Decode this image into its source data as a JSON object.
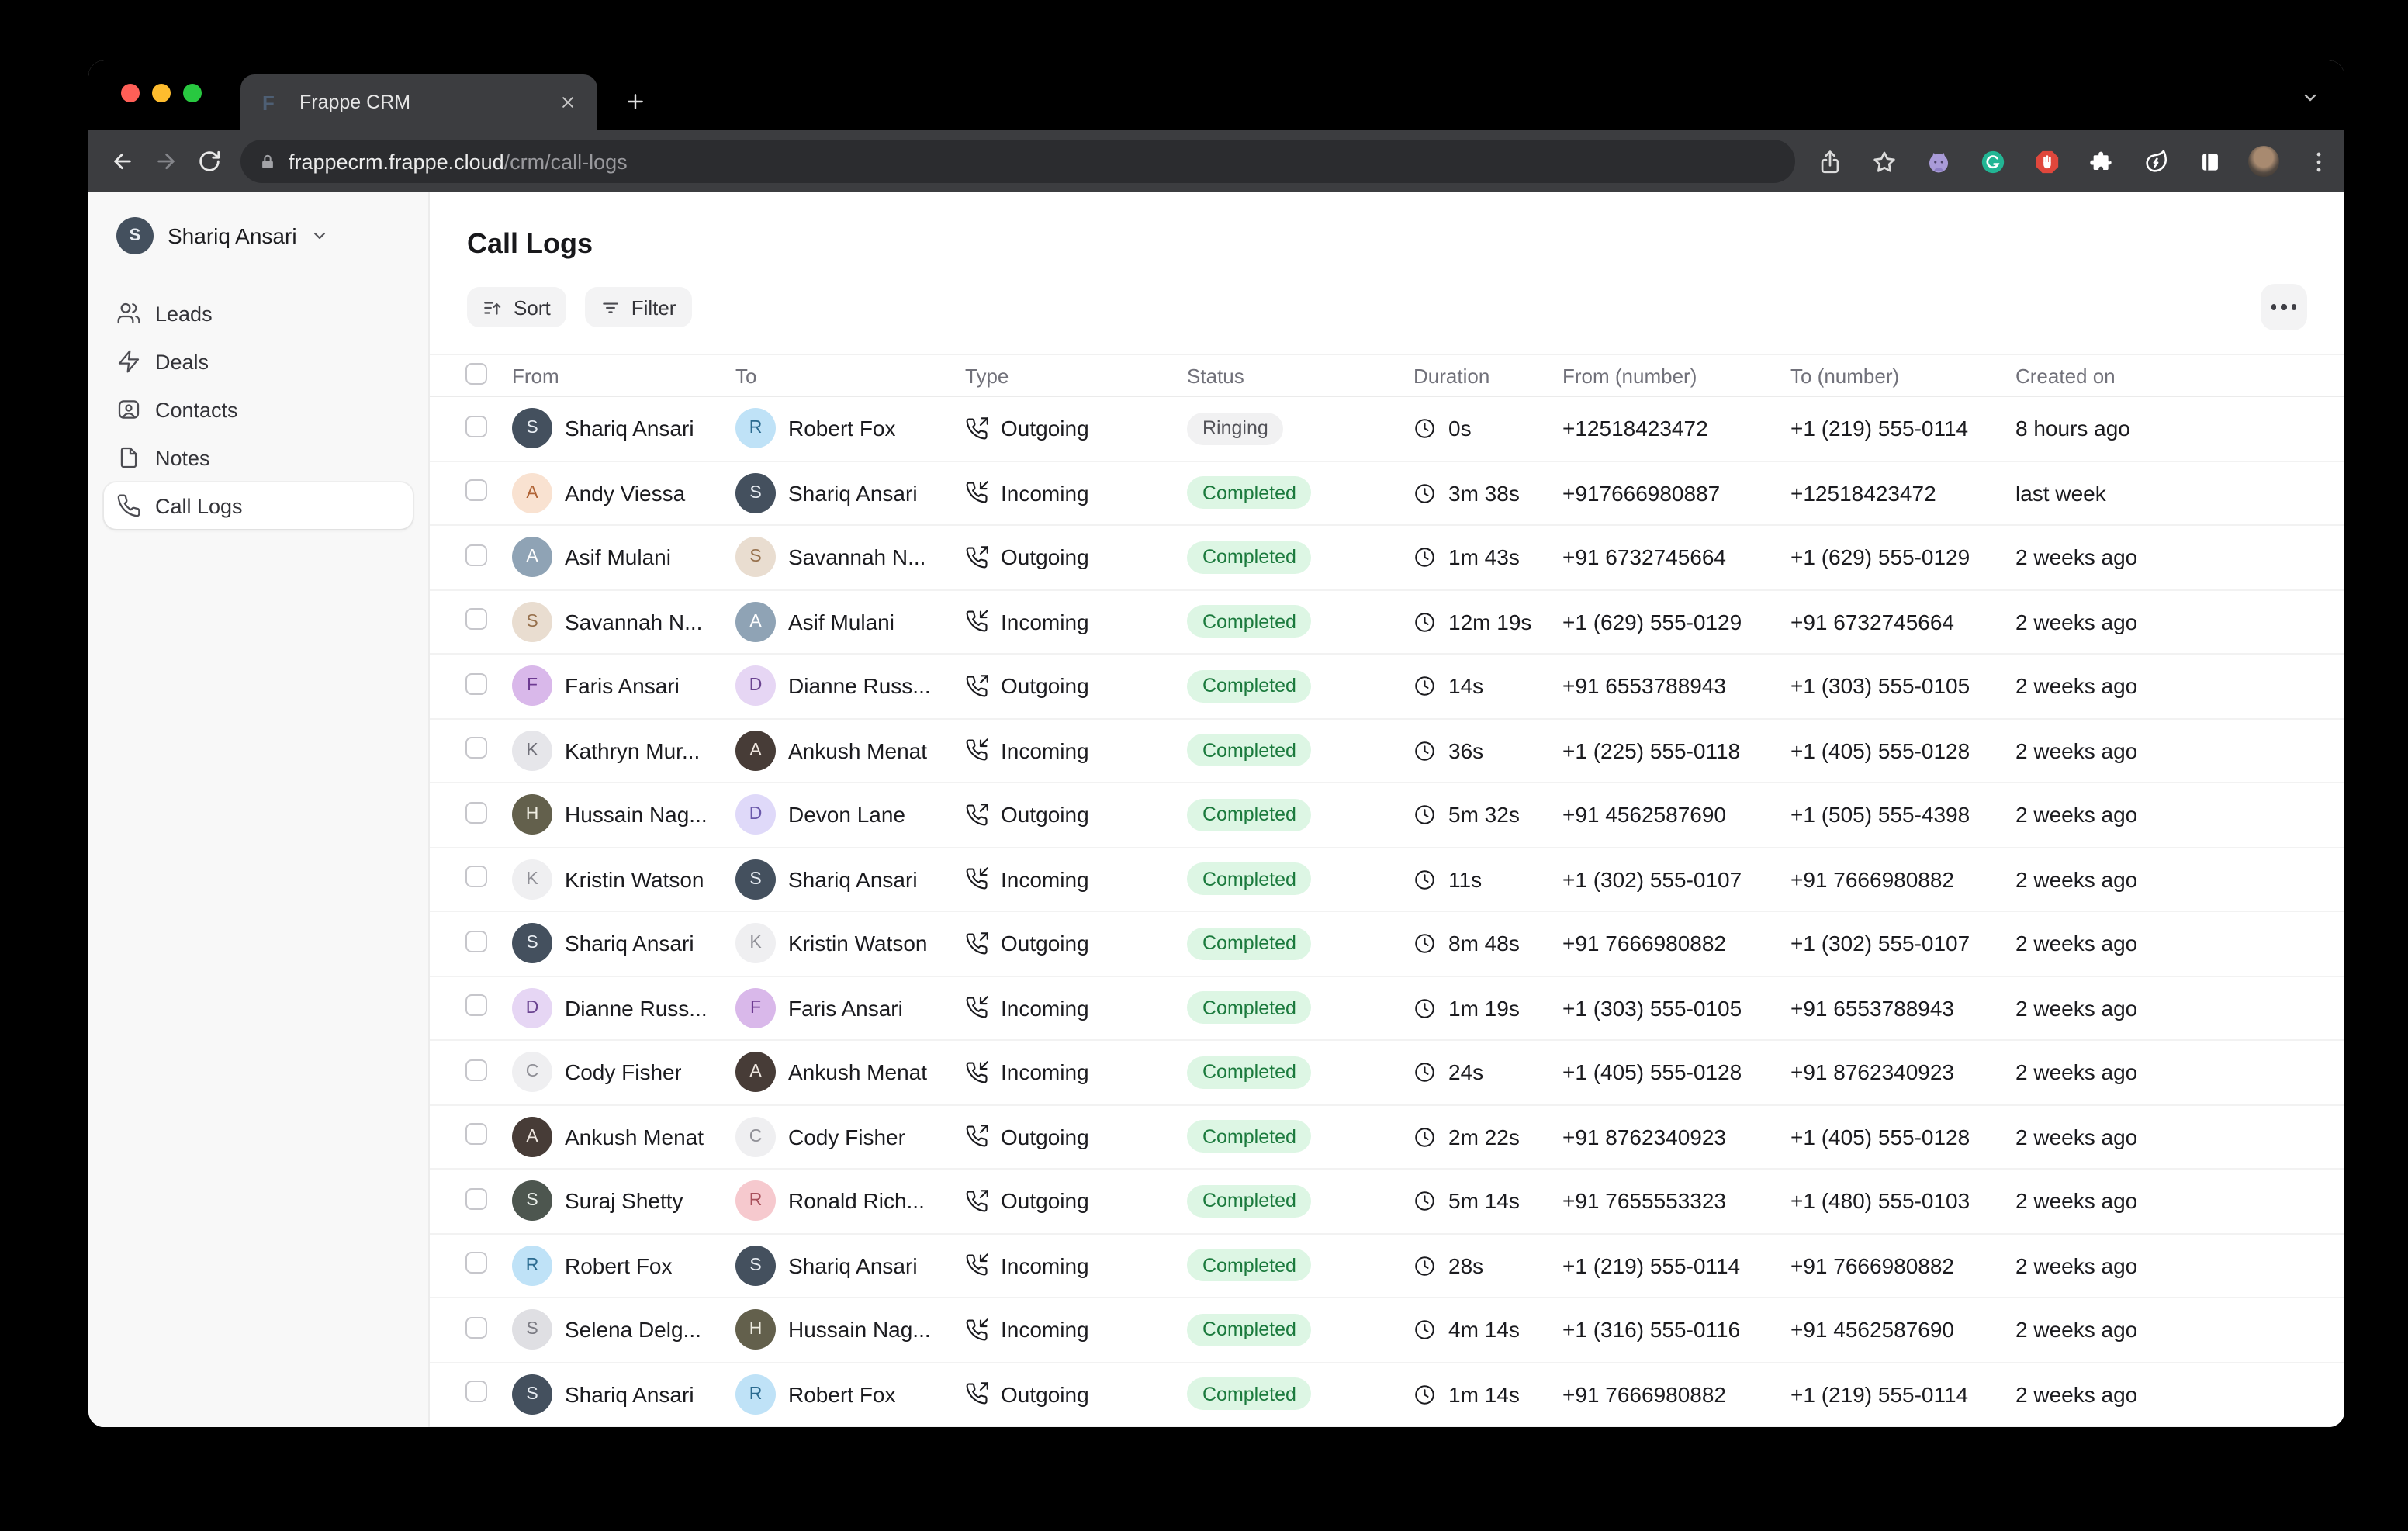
{
  "browser": {
    "traffic_lights": {
      "close": "#ff5f57",
      "minimize": "#febc2e",
      "zoom": "#28c840"
    },
    "tab": {
      "title": "Frappe CRM",
      "favicon_letter": "F"
    },
    "url": {
      "host": "frappecrm.frappe.cloud",
      "path": "/crm/call-logs"
    },
    "toolbar_icons": [
      "back-icon",
      "forward-icon",
      "reload-icon",
      "lock-icon",
      "share-icon",
      "bookmark-star-icon",
      "github-extension-icon",
      "grammarly-extension-icon",
      "adblock-extension-icon",
      "extensions-puzzle-icon",
      "energy-leaf-extension-icon",
      "side-panel-icon",
      "profile-avatar",
      "browser-menu-icon"
    ]
  },
  "sidebar": {
    "user": {
      "name": "Shariq Ansari",
      "avatar_initial": "S"
    },
    "items": [
      {
        "label": "Leads",
        "icon": "users-icon",
        "active": false
      },
      {
        "label": "Deals",
        "icon": "zap-icon",
        "active": false
      },
      {
        "label": "Contacts",
        "icon": "contact-icon",
        "active": false
      },
      {
        "label": "Notes",
        "icon": "note-icon",
        "active": false
      },
      {
        "label": "Call Logs",
        "icon": "phone-icon",
        "active": true
      }
    ]
  },
  "main": {
    "title": "Call Logs",
    "sort_label": "Sort",
    "filter_label": "Filter"
  },
  "colors": {
    "badge_green_bg": "#ddf6e4",
    "badge_green_text": "#1b7a3d",
    "badge_gray_bg": "#f1f1f2",
    "badge_gray_text": "#525258",
    "sidebar_bg": "#f8f8f8",
    "toolbar_bg": "#3c3d40",
    "urlpill_bg": "#2b2c2f"
  },
  "table": {
    "columns": [
      "From",
      "To",
      "Type",
      "Status",
      "Duration",
      "From (number)",
      "To (number)",
      "Created on"
    ],
    "rows": [
      {
        "from": {
          "name": "Shariq Ansari",
          "i": "S",
          "bg": "#44505e",
          "fg": "#e8edf3"
        },
        "to": {
          "name": "Robert Fox",
          "i": "R",
          "bg": "#bfe2f7",
          "fg": "#2a6a8f"
        },
        "type": "Outgoing",
        "dir": "outgoing",
        "status": "Ringing",
        "variant": "gray",
        "duration": "0s",
        "from_number": "+12518423472",
        "to_number": "+1 (219) 555-0114",
        "created": "8 hours ago"
      },
      {
        "from": {
          "name": "Andy Viessa",
          "i": "A",
          "bg": "#f9e2d1",
          "fg": "#b06335"
        },
        "to": {
          "name": "Shariq Ansari",
          "i": "S",
          "bg": "#44505e",
          "fg": "#e8edf3"
        },
        "type": "Incoming",
        "dir": "incoming",
        "status": "Completed",
        "variant": "green",
        "duration": "3m 38s",
        "from_number": "+917666980887",
        "to_number": "+12518423472",
        "created": "last week"
      },
      {
        "from": {
          "name": "Asif Mulani",
          "i": "A",
          "bg": "#8fa3b5",
          "fg": "#ffffff"
        },
        "to": {
          "name": "Savannah N...",
          "i": "S",
          "bg": "#e9ddd0",
          "fg": "#96704c"
        },
        "type": "Outgoing",
        "dir": "outgoing",
        "status": "Completed",
        "variant": "green",
        "duration": "1m 43s",
        "from_number": "+91 6732745664",
        "to_number": "+1 (629) 555-0129",
        "created": "2 weeks ago"
      },
      {
        "from": {
          "name": "Savannah N...",
          "i": "S",
          "bg": "#e9ddd0",
          "fg": "#96704c"
        },
        "to": {
          "name": "Asif Mulani",
          "i": "A",
          "bg": "#8fa3b5",
          "fg": "#ffffff"
        },
        "type": "Incoming",
        "dir": "incoming",
        "status": "Completed",
        "variant": "green",
        "duration": "12m 19s",
        "from_number": "+1 (629) 555-0129",
        "to_number": "+91 6732745664",
        "created": "2 weeks ago"
      },
      {
        "from": {
          "name": "Faris Ansari",
          "i": "F",
          "bg": "#d9b8ea",
          "fg": "#6d3a92"
        },
        "to": {
          "name": "Dianne Russ...",
          "i": "D",
          "bg": "#e6d6f4",
          "fg": "#6a4390"
        },
        "type": "Outgoing",
        "dir": "outgoing",
        "status": "Completed",
        "variant": "green",
        "duration": "14s",
        "from_number": "+91 6553788943",
        "to_number": "+1 (303) 555-0105",
        "created": "2 weeks ago"
      },
      {
        "from": {
          "name": "Kathryn Mur...",
          "i": "K",
          "bg": "#e6e6ea",
          "fg": "#707079"
        },
        "to": {
          "name": "Ankush Menat",
          "i": "A",
          "bg": "#473c37",
          "fg": "#efe7e0"
        },
        "type": "Incoming",
        "dir": "incoming",
        "status": "Completed",
        "variant": "green",
        "duration": "36s",
        "from_number": "+1 (225) 555-0118",
        "to_number": "+1 (405) 555-0128",
        "created": "2 weeks ago"
      },
      {
        "from": {
          "name": "Hussain Nag...",
          "i": "H",
          "bg": "#63604c",
          "fg": "#f0eee2"
        },
        "to": {
          "name": "Devon Lane",
          "i": "D",
          "bg": "#dfd9f9",
          "fg": "#6a58aa"
        },
        "type": "Outgoing",
        "dir": "outgoing",
        "status": "Completed",
        "variant": "green",
        "duration": "5m 32s",
        "from_number": "+91 4562587690",
        "to_number": "+1 (505) 555-4398",
        "created": "2 weeks ago"
      },
      {
        "from": {
          "name": "Kristin Watson",
          "i": "K",
          "bg": "#efeff1",
          "fg": "#8f8f96"
        },
        "to": {
          "name": "Shariq Ansari",
          "i": "S",
          "bg": "#44505e",
          "fg": "#e8edf3"
        },
        "type": "Incoming",
        "dir": "incoming",
        "status": "Completed",
        "variant": "green",
        "duration": "11s",
        "from_number": "+1 (302) 555-0107",
        "to_number": "+91 7666980882",
        "created": "2 weeks ago"
      },
      {
        "from": {
          "name": "Shariq Ansari",
          "i": "S",
          "bg": "#44505e",
          "fg": "#e8edf3"
        },
        "to": {
          "name": "Kristin Watson",
          "i": "K",
          "bg": "#efeff1",
          "fg": "#8f8f96"
        },
        "type": "Outgoing",
        "dir": "outgoing",
        "status": "Completed",
        "variant": "green",
        "duration": "8m 48s",
        "from_number": "+91 7666980882",
        "to_number": "+1 (302) 555-0107",
        "created": "2 weeks ago"
      },
      {
        "from": {
          "name": "Dianne Russ...",
          "i": "D",
          "bg": "#e6d6f4",
          "fg": "#6a4390"
        },
        "to": {
          "name": "Faris Ansari",
          "i": "F",
          "bg": "#d9b8ea",
          "fg": "#6d3a92"
        },
        "type": "Incoming",
        "dir": "incoming",
        "status": "Completed",
        "variant": "green",
        "duration": "1m 19s",
        "from_number": "+1 (303) 555-0105",
        "to_number": "+91 6553788943",
        "created": "2 weeks ago"
      },
      {
        "from": {
          "name": "Cody Fisher",
          "i": "C",
          "bg": "#efeff1",
          "fg": "#8f8f96"
        },
        "to": {
          "name": "Ankush Menat",
          "i": "A",
          "bg": "#473c37",
          "fg": "#efe7e0"
        },
        "type": "Incoming",
        "dir": "incoming",
        "status": "Completed",
        "variant": "green",
        "duration": "24s",
        "from_number": "+1 (405) 555-0128",
        "to_number": "+91 8762340923",
        "created": "2 weeks ago"
      },
      {
        "from": {
          "name": "Ankush Menat",
          "i": "A",
          "bg": "#473c37",
          "fg": "#efe7e0"
        },
        "to": {
          "name": "Cody Fisher",
          "i": "C",
          "bg": "#efeff1",
          "fg": "#8f8f96"
        },
        "type": "Outgoing",
        "dir": "outgoing",
        "status": "Completed",
        "variant": "green",
        "duration": "2m 22s",
        "from_number": "+91 8762340923",
        "to_number": "+1 (405) 555-0128",
        "created": "2 weeks ago"
      },
      {
        "from": {
          "name": "Suraj Shetty",
          "i": "S",
          "bg": "#4d564f",
          "fg": "#e9eee9"
        },
        "to": {
          "name": "Ronald Rich...",
          "i": "R",
          "bg": "#f6c9ce",
          "fg": "#a8505b"
        },
        "type": "Outgoing",
        "dir": "outgoing",
        "status": "Completed",
        "variant": "green",
        "duration": "5m 14s",
        "from_number": "+91 7655553323",
        "to_number": "+1 (480) 555-0103",
        "created": "2 weeks ago"
      },
      {
        "from": {
          "name": "Robert Fox",
          "i": "R",
          "bg": "#bfe2f7",
          "fg": "#2a6a8f"
        },
        "to": {
          "name": "Shariq Ansari",
          "i": "S",
          "bg": "#44505e",
          "fg": "#e8edf3"
        },
        "type": "Incoming",
        "dir": "incoming",
        "status": "Completed",
        "variant": "green",
        "duration": "28s",
        "from_number": "+1 (219) 555-0114",
        "to_number": "+91 7666980882",
        "created": "2 weeks ago"
      },
      {
        "from": {
          "name": "Selena Delg...",
          "i": "S",
          "bg": "#dfdfe3",
          "fg": "#7a7a82"
        },
        "to": {
          "name": "Hussain Nag...",
          "i": "H",
          "bg": "#63604c",
          "fg": "#f0eee2"
        },
        "type": "Incoming",
        "dir": "incoming",
        "status": "Completed",
        "variant": "green",
        "duration": "4m 14s",
        "from_number": "+1 (316) 555-0116",
        "to_number": "+91 4562587690",
        "created": "2 weeks ago"
      },
      {
        "from": {
          "name": "Shariq Ansari",
          "i": "S",
          "bg": "#44505e",
          "fg": "#e8edf3"
        },
        "to": {
          "name": "Robert Fox",
          "i": "R",
          "bg": "#bfe2f7",
          "fg": "#2a6a8f"
        },
        "type": "Outgoing",
        "dir": "outgoing",
        "status": "Completed",
        "variant": "green",
        "duration": "1m 14s",
        "from_number": "+91 7666980882",
        "to_number": "+1 (219) 555-0114",
        "created": "2 weeks ago"
      }
    ],
    "partial_row": {
      "from_avatar_bg": "#c9a06a",
      "to_avatar_bg": "#d6d6d9",
      "status_variant": "green"
    }
  }
}
